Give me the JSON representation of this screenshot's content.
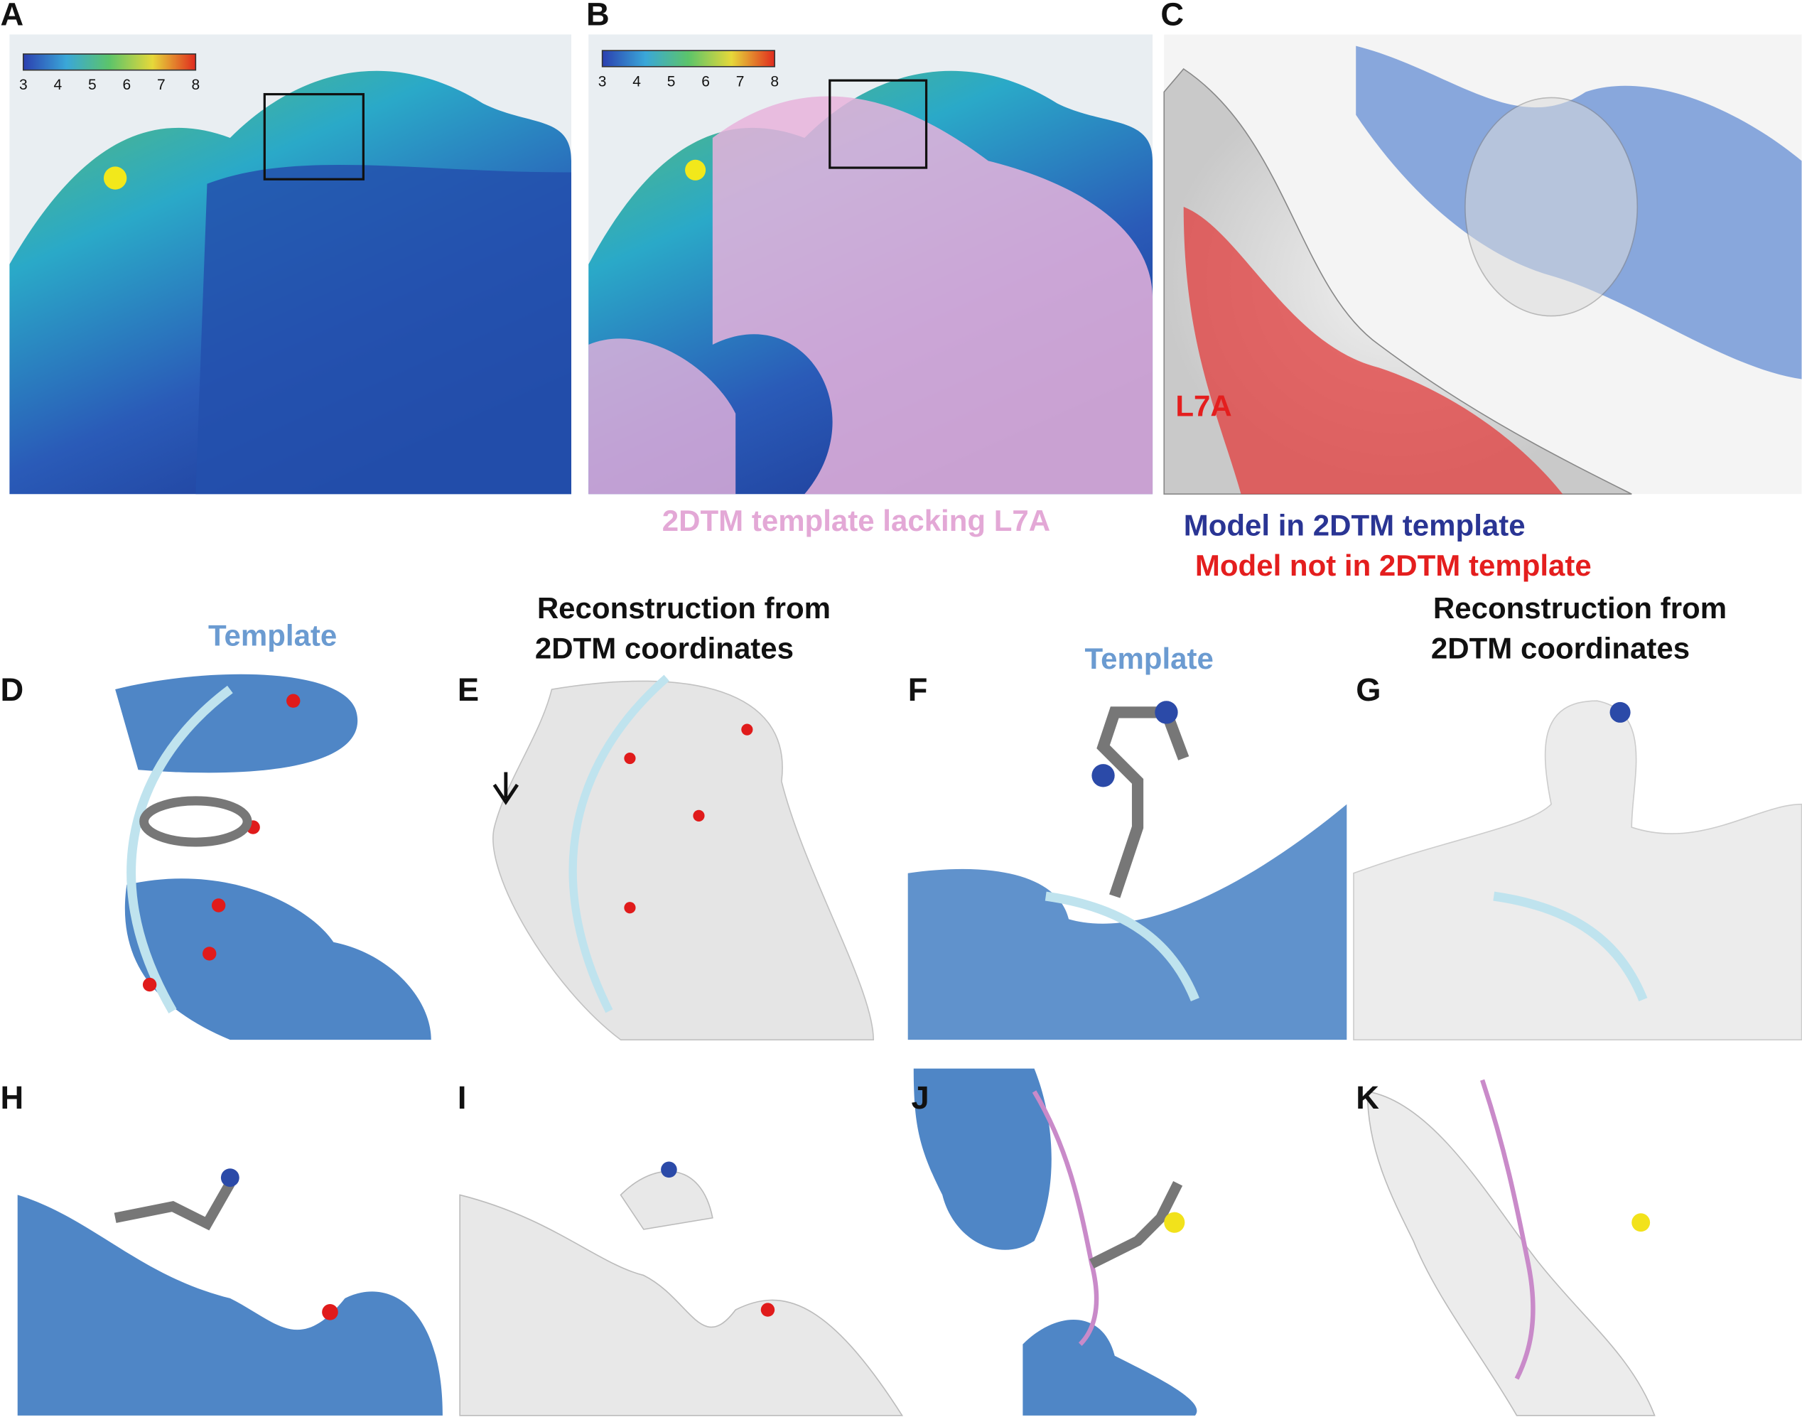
{
  "panels": [
    "A",
    "B",
    "C",
    "D",
    "E",
    "F",
    "G",
    "H",
    "I",
    "J",
    "K"
  ],
  "colorbar_ticks": [
    3,
    4,
    5,
    6,
    7,
    8
  ],
  "captions": {
    "b": "2DTM template lacking L7A",
    "c_residue": "L7A",
    "c_legend": [
      "Model in 2DTM template",
      "Model not in 2DTM template"
    ],
    "d": "Template",
    "e": [
      "Reconstruction from",
      "2DTM coordinates"
    ],
    "f": "Template",
    "g": [
      "Reconstruction from",
      "2DTM coordinates"
    ]
  }
}
